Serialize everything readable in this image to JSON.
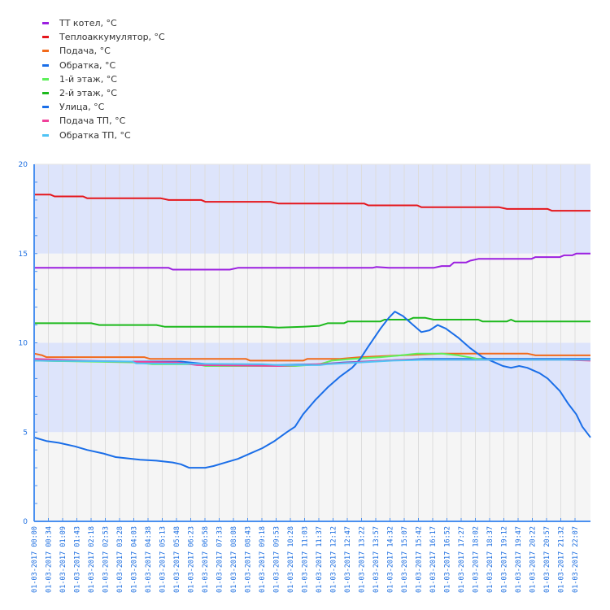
{
  "chart_data": {
    "type": "line",
    "title": "",
    "xlabel": "",
    "ylabel": "",
    "ylim": [
      0,
      20
    ],
    "yticks": [
      0,
      5,
      10,
      15,
      20
    ],
    "grid": true,
    "legend_position": "top-left",
    "bands": [
      {
        "from": 0,
        "to": 5,
        "color": "#f5f5f5"
      },
      {
        "from": 5,
        "to": 10,
        "color": "#dde4fb"
      },
      {
        "from": 10,
        "to": 15,
        "color": "#f5f5f5"
      },
      {
        "from": 15,
        "to": 20,
        "color": "#dde4fb"
      }
    ],
    "x_tick_labels": [
      "01-03-2017 00:00",
      "01-03-2017 00:34",
      "01-03-2017 01:09",
      "01-03-2017 01:43",
      "01-03-2017 02:18",
      "01-03-2017 02:53",
      "01-03-2017 03:28",
      "01-03-2017 04:03",
      "01-03-2017 04:38",
      "01-03-2017 05:13",
      "01-03-2017 05:48",
      "01-03-2017 06:23",
      "01-03-2017 06:58",
      "01-03-2017 07:33",
      "01-03-2017 08:08",
      "01-03-2017 08:43",
      "01-03-2017 09:18",
      "01-03-2017 09:53",
      "01-03-2017 10:28",
      "01-03-2017 11:03",
      "01-03-2017 11:37",
      "01-03-2017 12:12",
      "01-03-2017 12:47",
      "01-03-2017 13:22",
      "01-03-2017 13:57",
      "01-03-2017 14:32",
      "01-03-2017 15:07",
      "01-03-2017 15:42",
      "01-03-2017 16:17",
      "01-03-2017 16:52",
      "01-03-2017 17:27",
      "01-03-2017 18:02",
      "01-03-2017 18:37",
      "01-03-2017 19:12",
      "01-03-2017 19:47",
      "01-03-2017 20:22",
      "01-03-2017 20:57",
      "01-03-2017 21:32",
      "01-03-2017 22:07"
    ],
    "x_unit": "minutes since 01-03-2017 00:00",
    "x_max": 1365,
    "series": [
      {
        "name": "ТТ котел, °C",
        "color": "#9b1fe0",
        "points": [
          [
            0,
            14.2
          ],
          [
            330,
            14.2
          ],
          [
            340,
            14.1
          ],
          [
            480,
            14.1
          ],
          [
            500,
            14.2
          ],
          [
            830,
            14.2
          ],
          [
            840,
            14.25
          ],
          [
            870,
            14.2
          ],
          [
            980,
            14.2
          ],
          [
            1000,
            14.3
          ],
          [
            1020,
            14.3
          ],
          [
            1030,
            14.5
          ],
          [
            1060,
            14.5
          ],
          [
            1070,
            14.6
          ],
          [
            1090,
            14.7
          ],
          [
            1220,
            14.7
          ],
          [
            1230,
            14.8
          ],
          [
            1290,
            14.8
          ],
          [
            1300,
            14.9
          ],
          [
            1320,
            14.9
          ],
          [
            1330,
            15.0
          ],
          [
            1365,
            15.0
          ]
        ]
      },
      {
        "name": "Теплоаккумулятор, °C",
        "color": "#e5161c",
        "points": [
          [
            0,
            18.3
          ],
          [
            40,
            18.3
          ],
          [
            50,
            18.2
          ],
          [
            120,
            18.2
          ],
          [
            130,
            18.1
          ],
          [
            310,
            18.1
          ],
          [
            330,
            18.0
          ],
          [
            410,
            18.0
          ],
          [
            420,
            17.9
          ],
          [
            580,
            17.9
          ],
          [
            600,
            17.8
          ],
          [
            810,
            17.8
          ],
          [
            820,
            17.7
          ],
          [
            940,
            17.7
          ],
          [
            950,
            17.6
          ],
          [
            1140,
            17.6
          ],
          [
            1160,
            17.5
          ],
          [
            1260,
            17.5
          ],
          [
            1270,
            17.4
          ],
          [
            1365,
            17.4
          ]
        ]
      },
      {
        "name": "Подача, °C",
        "color": "#f26a1b",
        "points": [
          [
            0,
            9.4
          ],
          [
            20,
            9.3
          ],
          [
            30,
            9.2
          ],
          [
            270,
            9.2
          ],
          [
            285,
            9.1
          ],
          [
            520,
            9.1
          ],
          [
            530,
            9.0
          ],
          [
            660,
            9.0
          ],
          [
            670,
            9.1
          ],
          [
            750,
            9.1
          ],
          [
            800,
            9.2
          ],
          [
            900,
            9.3
          ],
          [
            1000,
            9.4
          ],
          [
            1210,
            9.4
          ],
          [
            1230,
            9.3
          ],
          [
            1365,
            9.3
          ]
        ]
      },
      {
        "name": "Обратка, °C",
        "color": "#1a6ee8",
        "points": [
          [
            0,
            9.0
          ],
          [
            200,
            8.95
          ],
          [
            360,
            8.95
          ],
          [
            470,
            8.7
          ],
          [
            700,
            8.8
          ],
          [
            760,
            8.9
          ],
          [
            860,
            9.0
          ],
          [
            960,
            9.1
          ],
          [
            1100,
            9.1
          ],
          [
            1365,
            9.1
          ]
        ]
      },
      {
        "name": "1-й этаж, °C",
        "color": "#5df05a",
        "points": [
          [
            0,
            9.0
          ],
          [
            250,
            8.9
          ],
          [
            290,
            8.8
          ],
          [
            400,
            8.8
          ],
          [
            420,
            8.7
          ],
          [
            640,
            8.7
          ],
          [
            700,
            8.8
          ],
          [
            730,
            9.0
          ],
          [
            780,
            9.1
          ],
          [
            850,
            9.2
          ],
          [
            900,
            9.3
          ],
          [
            940,
            9.4
          ],
          [
            1000,
            9.4
          ],
          [
            1040,
            9.3
          ],
          [
            1090,
            9.1
          ],
          [
            1110,
            9.05
          ]
        ]
      },
      {
        "name": "2-й этаж, °C",
        "color": "#1cb91c",
        "points": [
          [
            0,
            11.1
          ],
          [
            140,
            11.1
          ],
          [
            160,
            11.0
          ],
          [
            300,
            11.0
          ],
          [
            320,
            10.9
          ],
          [
            560,
            10.9
          ],
          [
            600,
            10.85
          ],
          [
            660,
            10.9
          ],
          [
            700,
            10.95
          ],
          [
            720,
            11.1
          ],
          [
            760,
            11.1
          ],
          [
            770,
            11.2
          ],
          [
            850,
            11.2
          ],
          [
            860,
            11.3
          ],
          [
            920,
            11.3
          ],
          [
            930,
            11.4
          ],
          [
            960,
            11.4
          ],
          [
            980,
            11.3
          ],
          [
            1090,
            11.3
          ],
          [
            1100,
            11.2
          ],
          [
            1160,
            11.2
          ],
          [
            1170,
            11.3
          ],
          [
            1180,
            11.2
          ],
          [
            1365,
            11.2
          ]
        ]
      },
      {
        "name": "Улица, °C",
        "color": "#1a6ee8",
        "points": [
          [
            0,
            4.7
          ],
          [
            30,
            4.5
          ],
          [
            60,
            4.4
          ],
          [
            100,
            4.2
          ],
          [
            130,
            4.0
          ],
          [
            170,
            3.8
          ],
          [
            200,
            3.6
          ],
          [
            260,
            3.45
          ],
          [
            300,
            3.4
          ],
          [
            340,
            3.3
          ],
          [
            360,
            3.2
          ],
          [
            380,
            3.0
          ],
          [
            420,
            3.0
          ],
          [
            440,
            3.1
          ],
          [
            470,
            3.3
          ],
          [
            500,
            3.5
          ],
          [
            530,
            3.8
          ],
          [
            560,
            4.1
          ],
          [
            590,
            4.5
          ],
          [
            620,
            5.0
          ],
          [
            640,
            5.3
          ],
          [
            660,
            6.0
          ],
          [
            690,
            6.8
          ],
          [
            720,
            7.5
          ],
          [
            750,
            8.1
          ],
          [
            780,
            8.6
          ],
          [
            800,
            9.1
          ],
          [
            820,
            9.8
          ],
          [
            850,
            10.8
          ],
          [
            870,
            11.4
          ],
          [
            885,
            11.75
          ],
          [
            905,
            11.5
          ],
          [
            930,
            11.0
          ],
          [
            950,
            10.6
          ],
          [
            970,
            10.7
          ],
          [
            990,
            11.0
          ],
          [
            1010,
            10.8
          ],
          [
            1040,
            10.3
          ],
          [
            1070,
            9.7
          ],
          [
            1100,
            9.2
          ],
          [
            1130,
            8.9
          ],
          [
            1150,
            8.7
          ],
          [
            1170,
            8.6
          ],
          [
            1190,
            8.7
          ],
          [
            1210,
            8.6
          ],
          [
            1240,
            8.3
          ],
          [
            1260,
            8.0
          ],
          [
            1290,
            7.3
          ],
          [
            1310,
            6.6
          ],
          [
            1330,
            6.0
          ],
          [
            1345,
            5.3
          ],
          [
            1365,
            4.7
          ]
        ]
      },
      {
        "name": "Подача ТП, °C",
        "color": "#f0409a",
        "points": [
          [
            0,
            9.1
          ],
          [
            120,
            9.0
          ],
          [
            220,
            8.95
          ],
          [
            350,
            8.9
          ],
          [
            400,
            8.75
          ],
          [
            600,
            8.7
          ],
          [
            700,
            8.8
          ],
          [
            780,
            8.9
          ],
          [
            860,
            9.0
          ],
          [
            900,
            9.05
          ],
          [
            1300,
            9.05
          ],
          [
            1365,
            9.0
          ]
        ]
      },
      {
        "name": "Обратка ТП, °C",
        "color": "#4fc3f5",
        "points": [
          [
            0,
            9.0
          ],
          [
            240,
            8.95
          ],
          [
            250,
            8.85
          ],
          [
            560,
            8.8
          ],
          [
            600,
            8.75
          ],
          [
            700,
            8.75
          ],
          [
            720,
            8.8
          ],
          [
            800,
            8.9
          ],
          [
            880,
            9.0
          ],
          [
            960,
            9.05
          ],
          [
            1365,
            9.05
          ]
        ]
      }
    ]
  },
  "legend": {
    "items": [
      {
        "label": "ТТ котел, °C",
        "color": "#9b1fe0"
      },
      {
        "label": "Теплоаккумулятор, °C",
        "color": "#e5161c"
      },
      {
        "label": "Подача, °C",
        "color": "#f26a1b"
      },
      {
        "label": "Обратка, °C",
        "color": "#1a6ee8"
      },
      {
        "label": "1-й этаж, °C",
        "color": "#5df05a"
      },
      {
        "label": "2-й этаж, °C",
        "color": "#1cb91c"
      },
      {
        "label": "Улица, °C",
        "color": "#1a6ee8"
      },
      {
        "label": "Подача ТП, °C",
        "color": "#f0409a"
      },
      {
        "label": "Обратка ТП, °C",
        "color": "#4fc3f5"
      }
    ]
  },
  "colors": {
    "axis": "#4a90f0",
    "grid": "#dddddd",
    "tick_label": "#1e6fe0"
  }
}
